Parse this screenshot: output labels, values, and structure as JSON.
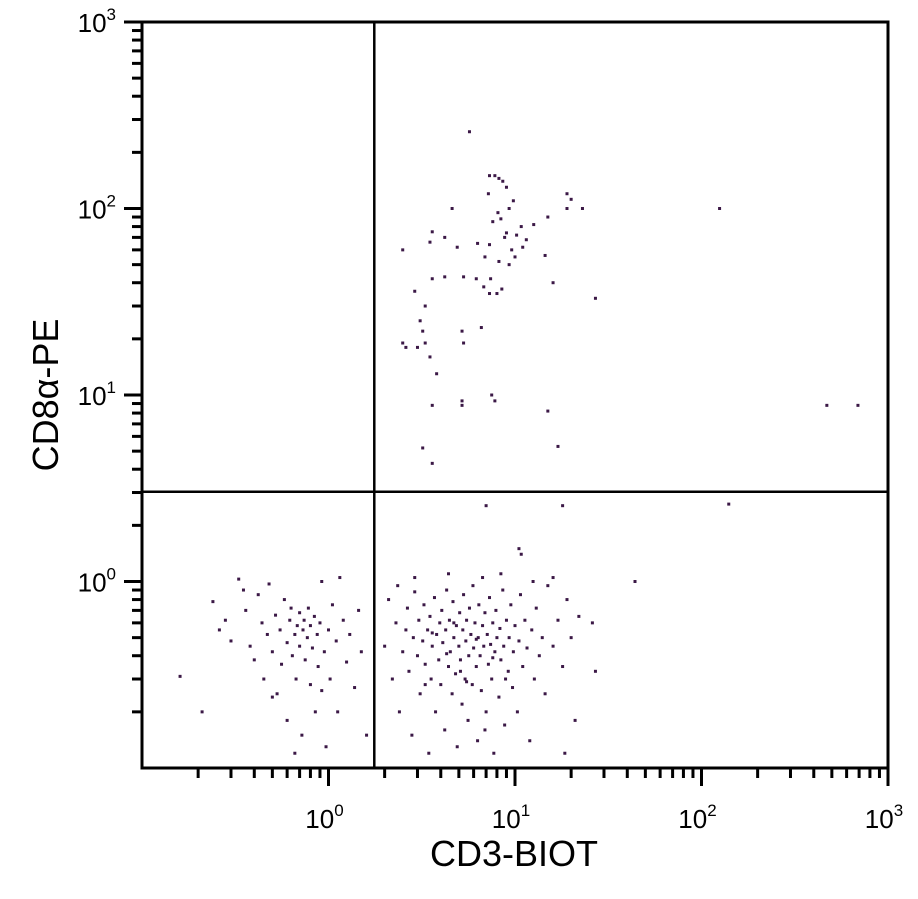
{
  "chart_data": {
    "type": "scatter",
    "title": "",
    "xlabel": "CD3-BIOT",
    "ylabel": "CD8α-PE",
    "x_scale": "log",
    "y_scale": "log",
    "xlim": [
      0.1,
      1000
    ],
    "ylim": [
      0.1,
      1000
    ],
    "grid": false,
    "x_ticks": [
      {
        "base": "10",
        "exp": "0",
        "value": 1
      },
      {
        "base": "10",
        "exp": "1",
        "value": 10
      },
      {
        "base": "10",
        "exp": "2",
        "value": 100
      },
      {
        "base": "10",
        "exp": "3",
        "value": 1000
      }
    ],
    "y_ticks": [
      {
        "base": "10",
        "exp": "0",
        "value": 1
      },
      {
        "base": "10",
        "exp": "1",
        "value": 10
      },
      {
        "base": "10",
        "exp": "2",
        "value": 100
      },
      {
        "base": "10",
        "exp": "3",
        "value": 1000
      }
    ],
    "quadrant_gates": {
      "x": 1.76,
      "y": 3.03
    },
    "point_color": "#3b1846",
    "points": [
      [
        5.7,
        258
      ],
      [
        7.3,
        150
      ],
      [
        7.8,
        150
      ],
      [
        8.2,
        145
      ],
      [
        8.6,
        140
      ],
      [
        9,
        130
      ],
      [
        7.2,
        120
      ],
      [
        9.8,
        110
      ],
      [
        9.3,
        100
      ],
      [
        4.6,
        100
      ],
      [
        8.1,
        95
      ],
      [
        8.4,
        88
      ],
      [
        10.8,
        80
      ],
      [
        12.6,
        82
      ],
      [
        3.6,
        75
      ],
      [
        9,
        74
      ],
      [
        6.3,
        65
      ],
      [
        4.9,
        62
      ],
      [
        7.3,
        64
      ],
      [
        9.6,
        60
      ],
      [
        11,
        62
      ],
      [
        14.5,
        56
      ],
      [
        19,
        120
      ],
      [
        20,
        112
      ],
      [
        23,
        100
      ],
      [
        19,
        100
      ],
      [
        15,
        90
      ],
      [
        4.2,
        43
      ],
      [
        6.2,
        42
      ],
      [
        7.4,
        42
      ],
      [
        6.8,
        38
      ],
      [
        8.5,
        37
      ],
      [
        3.3,
        30
      ],
      [
        7.6,
        85
      ],
      [
        8.8,
        70
      ],
      [
        10.2,
        72
      ],
      [
        11.5,
        68
      ],
      [
        6.9,
        55
      ],
      [
        8.2,
        52
      ],
      [
        9.3,
        50
      ],
      [
        10,
        55
      ],
      [
        125,
        100
      ],
      [
        2.5,
        60
      ],
      [
        2.9,
        36
      ],
      [
        3.6,
        42
      ],
      [
        5.2,
        22
      ],
      [
        5.3,
        19
      ],
      [
        6.6,
        23
      ],
      [
        7.3,
        35
      ],
      [
        8,
        35
      ],
      [
        5.3,
        43
      ],
      [
        4.2,
        70
      ],
      [
        3.5,
        66
      ],
      [
        16,
        40
      ],
      [
        27,
        33
      ],
      [
        2.6,
        18
      ],
      [
        2.5,
        19
      ],
      [
        3.2,
        22
      ],
      [
        3.5,
        16
      ],
      [
        3.8,
        13
      ],
      [
        3.3,
        19
      ],
      [
        3.0,
        18
      ],
      [
        3.1,
        25
      ],
      [
        3.6,
        8.8
      ],
      [
        5.2,
        9.3
      ],
      [
        5.2,
        8.8
      ],
      [
        7.5,
        10
      ],
      [
        7.8,
        9.3
      ],
      [
        3.2,
        5.2
      ],
      [
        3.6,
        4.3
      ],
      [
        15,
        8.2
      ],
      [
        17,
        5.3
      ],
      [
        470,
        8.8
      ],
      [
        690,
        8.8
      ],
      [
        140,
        2.6
      ],
      [
        7,
        2.55
      ],
      [
        18,
        2.55
      ],
      [
        10.5,
        1.5
      ],
      [
        10.8,
        1.4
      ],
      [
        44,
        1.0
      ],
      [
        27,
        0.33
      ],
      [
        26,
        0.6
      ],
      [
        0.16,
        0.31
      ],
      [
        0.21,
        0.2
      ],
      [
        0.24,
        0.78
      ],
      [
        0.26,
        0.55
      ],
      [
        0.28,
        0.62
      ],
      [
        0.3,
        0.48
      ],
      [
        0.33,
        1.03
      ],
      [
        0.35,
        0.9
      ],
      [
        0.36,
        0.7
      ],
      [
        0.38,
        0.45
      ],
      [
        0.4,
        0.38
      ],
      [
        0.42,
        0.85
      ],
      [
        0.44,
        0.6
      ],
      [
        0.45,
        0.3
      ],
      [
        0.47,
        0.52
      ],
      [
        0.48,
        0.97
      ],
      [
        0.5,
        0.42
      ],
      [
        0.52,
        0.66
      ],
      [
        0.53,
        0.25
      ],
      [
        0.55,
        0.55
      ],
      [
        0.56,
        0.36
      ],
      [
        0.58,
        0.8
      ],
      [
        0.6,
        0.47
      ],
      [
        0.6,
        0.18
      ],
      [
        0.62,
        0.62
      ],
      [
        0.63,
        0.72
      ],
      [
        0.64,
        0.4
      ],
      [
        0.66,
        0.52
      ],
      [
        0.67,
        0.3
      ],
      [
        0.68,
        0.58
      ],
      [
        0.7,
        0.45
      ],
      [
        0.7,
        0.68
      ],
      [
        0.72,
        0.15
      ],
      [
        0.73,
        0.55
      ],
      [
        0.74,
        0.62
      ],
      [
        0.75,
        0.38
      ],
      [
        0.77,
        0.5
      ],
      [
        0.78,
        0.72
      ],
      [
        0.8,
        0.58
      ],
      [
        0.8,
        0.28
      ],
      [
        0.82,
        0.44
      ],
      [
        0.84,
        0.65
      ],
      [
        0.85,
        0.2
      ],
      [
        0.87,
        0.52
      ],
      [
        0.88,
        0.35
      ],
      [
        0.9,
        0.6
      ],
      [
        0.92,
        1.0
      ],
      [
        0.95,
        0.42
      ],
      [
        0.97,
        0.13
      ],
      [
        1.0,
        0.55
      ],
      [
        1.02,
        0.3
      ],
      [
        1.05,
        0.75
      ],
      [
        1.1,
        0.48
      ],
      [
        1.12,
        0.2
      ],
      [
        1.15,
        1.05
      ],
      [
        1.2,
        0.62
      ],
      [
        1.25,
        0.37
      ],
      [
        1.3,
        0.52
      ],
      [
        1.38,
        0.27
      ],
      [
        1.45,
        0.7
      ],
      [
        1.5,
        0.42
      ],
      [
        1.6,
        0.15
      ],
      [
        0.5,
        0.24
      ],
      [
        0.66,
        0.12
      ],
      [
        0.92,
        0.26
      ],
      [
        2.0,
        0.45
      ],
      [
        2.1,
        0.8
      ],
      [
        2.2,
        0.3
      ],
      [
        2.3,
        0.6
      ],
      [
        2.35,
        0.95
      ],
      [
        2.4,
        0.2
      ],
      [
        2.5,
        0.42
      ],
      [
        2.6,
        0.55
      ],
      [
        2.65,
        0.72
      ],
      [
        2.7,
        0.33
      ],
      [
        2.8,
        0.15
      ],
      [
        2.85,
        0.5
      ],
      [
        2.9,
        0.88
      ],
      [
        3.0,
        0.4
      ],
      [
        3.05,
        0.62
      ],
      [
        3.1,
        0.25
      ],
      [
        3.2,
        0.48
      ],
      [
        3.25,
        0.75
      ],
      [
        3.3,
        0.36
      ],
      [
        3.4,
        0.55
      ],
      [
        3.45,
        0.12
      ],
      [
        3.5,
        0.65
      ],
      [
        3.55,
        0.3
      ],
      [
        3.6,
        0.45
      ],
      [
        3.7,
        0.82
      ],
      [
        3.75,
        0.2
      ],
      [
        3.8,
        0.52
      ],
      [
        3.9,
        0.38
      ],
      [
        3.95,
        0.6
      ],
      [
        4.0,
        0.28
      ],
      [
        4.05,
        0.7
      ],
      [
        4.1,
        0.47
      ],
      [
        4.2,
        0.16
      ],
      [
        4.25,
        0.55
      ],
      [
        4.3,
        0.9
      ],
      [
        4.4,
        0.35
      ],
      [
        4.45,
        0.62
      ],
      [
        4.5,
        0.42
      ],
      [
        4.6,
        0.25
      ],
      [
        4.65,
        0.78
      ],
      [
        4.7,
        0.5
      ],
      [
        4.8,
        0.32
      ],
      [
        4.85,
        0.58
      ],
      [
        4.9,
        0.13
      ],
      [
        5.0,
        0.45
      ],
      [
        5.05,
        0.68
      ],
      [
        5.1,
        0.38
      ],
      [
        5.2,
        0.22
      ],
      [
        5.25,
        0.55
      ],
      [
        5.3,
        0.85
      ],
      [
        5.4,
        0.3
      ],
      [
        5.45,
        0.48
      ],
      [
        5.5,
        0.62
      ],
      [
        5.6,
        0.18
      ],
      [
        5.65,
        0.4
      ],
      [
        5.7,
        0.72
      ],
      [
        5.8,
        0.52
      ],
      [
        5.9,
        0.28
      ],
      [
        5.95,
        0.95
      ],
      [
        6.0,
        0.44
      ],
      [
        6.1,
        0.6
      ],
      [
        6.2,
        0.35
      ],
      [
        6.3,
        0.14
      ],
      [
        6.35,
        0.5
      ],
      [
        6.4,
        0.75
      ],
      [
        6.5,
        0.4
      ],
      [
        6.6,
        0.26
      ],
      [
        6.7,
        0.58
      ],
      [
        6.8,
        0.45
      ],
      [
        6.9,
        0.68
      ],
      [
        7.0,
        0.2
      ],
      [
        7.1,
        0.52
      ],
      [
        7.2,
        0.36
      ],
      [
        7.3,
        0.82
      ],
      [
        7.4,
        0.46
      ],
      [
        7.5,
        0.3
      ],
      [
        7.6,
        0.6
      ],
      [
        7.7,
        0.12
      ],
      [
        7.8,
        0.42
      ],
      [
        7.9,
        0.7
      ],
      [
        8.0,
        0.5
      ],
      [
        8.2,
        0.24
      ],
      [
        8.3,
        0.56
      ],
      [
        8.4,
        0.38
      ],
      [
        8.6,
        0.9
      ],
      [
        8.7,
        0.45
      ],
      [
        8.8,
        0.17
      ],
      [
        9.0,
        0.62
      ],
      [
        9.2,
        0.33
      ],
      [
        9.3,
        0.5
      ],
      [
        9.5,
        0.75
      ],
      [
        9.7,
        0.27
      ],
      [
        9.8,
        0.42
      ],
      [
        10,
        0.58
      ],
      [
        10.3,
        0.2
      ],
      [
        10.5,
        0.48
      ],
      [
        10.7,
        0.85
      ],
      [
        11,
        0.35
      ],
      [
        11.3,
        0.62
      ],
      [
        11.6,
        0.44
      ],
      [
        12,
        0.14
      ],
      [
        12.3,
        0.55
      ],
      [
        12.7,
        0.3
      ],
      [
        13,
        0.72
      ],
      [
        13.5,
        0.4
      ],
      [
        14,
        0.5
      ],
      [
        14.5,
        0.25
      ],
      [
        15,
        0.95
      ],
      [
        16,
        0.45
      ],
      [
        17,
        0.62
      ],
      [
        18,
        0.35
      ],
      [
        19,
        0.8
      ],
      [
        20,
        0.5
      ],
      [
        21,
        0.18
      ],
      [
        22,
        0.65
      ],
      [
        18.5,
        0.12
      ],
      [
        2.9,
        1.05
      ],
      [
        4.4,
        1.1
      ],
      [
        6.7,
        1.05
      ],
      [
        8.4,
        1.1
      ],
      [
        12.5,
        1.0
      ],
      [
        16,
        1.05
      ],
      [
        5.1,
        0.33
      ],
      [
        4.3,
        0.41
      ],
      [
        3.6,
        0.53
      ],
      [
        6.2,
        0.49
      ],
      [
        7.6,
        0.39
      ],
      [
        5.5,
        0.29
      ],
      [
        4.7,
        0.6
      ],
      [
        3.3,
        0.28
      ],
      [
        8.9,
        0.3
      ],
      [
        6.9,
        0.16
      ]
    ]
  }
}
